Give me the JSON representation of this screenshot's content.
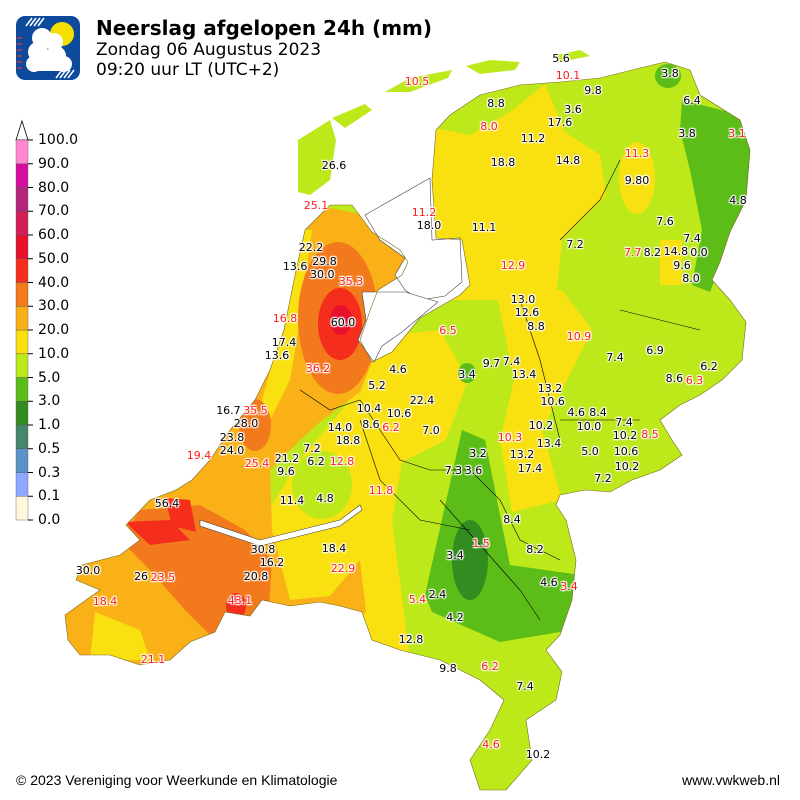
{
  "header": {
    "title": "Neerslag afgelopen 24h (mm)",
    "date": "Zondag 06 Augustus 2023",
    "time": "09:20 uur LT (UTC+2)"
  },
  "logo": {
    "icon": "cloud-sun-rain-logo",
    "background": "#0d4a9b"
  },
  "legend": {
    "unit": "mm",
    "ticks": [
      "100.0",
      "90.0",
      "80.0",
      "70.0",
      "60.0",
      "50.0",
      "40.0",
      "30.0",
      "20.0",
      "10.0",
      "5.0",
      "3.0",
      "1.0",
      "0.5",
      "0.3",
      "0.1",
      "0.0"
    ],
    "colors_bottom_to_top": [
      "#fff8dc",
      "#8ca8ff",
      "#5a92c8",
      "#46866a",
      "#338c20",
      "#5cbc18",
      "#bde81a",
      "#f9e011",
      "#f9b117",
      "#f27a1c",
      "#f52d1d",
      "#e8112d",
      "#d41e58",
      "#b3247a",
      "#d40fa0",
      "#ff88d0"
    ],
    "extend": "max"
  },
  "stations": [
    {
      "v": "10.5",
      "red": true
    },
    {
      "v": "5.6",
      "red": false
    },
    {
      "v": "10.1",
      "red": true
    },
    {
      "v": "9.8",
      "red": false
    },
    {
      "v": "3.8",
      "red": false
    },
    {
      "v": "6.4",
      "red": false
    },
    {
      "v": "8.8",
      "red": false
    },
    {
      "v": "8.0",
      "red": true
    },
    {
      "v": "3.6",
      "red": false
    },
    {
      "v": "17.6",
      "red": false
    },
    {
      "v": "11.2",
      "red": false
    },
    {
      "v": "3.8",
      "red": false
    },
    {
      "v": "3.1",
      "red": true
    },
    {
      "v": "11.3",
      "red": true
    },
    {
      "v": "18.8",
      "red": false
    },
    {
      "v": "14.8",
      "red": false
    },
    {
      "v": "26.6",
      "red": false
    },
    {
      "v": "9.80",
      "red": false
    },
    {
      "v": "4.8",
      "red": false
    },
    {
      "v": "25.1",
      "red": true
    },
    {
      "v": "11.2",
      "red": true
    },
    {
      "v": "18.0",
      "red": false
    },
    {
      "v": "11.1",
      "red": false
    },
    {
      "v": "7.6",
      "red": false
    },
    {
      "v": "7.2",
      "red": false
    },
    {
      "v": "7.7",
      "red": true
    },
    {
      "v": "8.2",
      "red": false
    },
    {
      "v": "14.8",
      "red": false
    },
    {
      "v": "7.4",
      "red": false
    },
    {
      "v": "0.0",
      "red": false
    },
    {
      "v": "9.6",
      "red": false
    },
    {
      "v": "8.0",
      "red": false
    },
    {
      "v": "12.9",
      "red": true
    },
    {
      "v": "22.2",
      "red": false
    },
    {
      "v": "13.6",
      "red": false
    },
    {
      "v": "29.8",
      "red": false
    },
    {
      "v": "30.0",
      "red": false
    },
    {
      "v": "35.3",
      "red": true
    },
    {
      "v": "13.0",
      "red": false
    },
    {
      "v": "12.6",
      "red": false
    },
    {
      "v": "16.8",
      "red": true
    },
    {
      "v": "60.0",
      "red": false
    },
    {
      "v": "6.5",
      "red": true
    },
    {
      "v": "8.8",
      "red": false
    },
    {
      "v": "10.9",
      "red": true
    },
    {
      "v": "17.4",
      "red": false
    },
    {
      "v": "13.6",
      "red": false
    },
    {
      "v": "9.7",
      "red": false
    },
    {
      "v": "7.4",
      "red": false
    },
    {
      "v": "7.4",
      "red": false
    },
    {
      "v": "6.9",
      "red": false
    },
    {
      "v": "36.2",
      "red": true
    },
    {
      "v": "4.6",
      "red": false
    },
    {
      "v": "3.4",
      "red": false
    },
    {
      "v": "13.4",
      "red": false
    },
    {
      "v": "6.2",
      "red": false
    },
    {
      "v": "8.6",
      "red": false
    },
    {
      "v": "6.3",
      "red": true
    },
    {
      "v": "5.2",
      "red": false
    },
    {
      "v": "13.2",
      "red": false
    },
    {
      "v": "10.6",
      "red": false
    },
    {
      "v": "22.4",
      "red": false
    },
    {
      "v": "10.4",
      "red": false
    },
    {
      "v": "10.6",
      "red": false
    },
    {
      "v": "8.6",
      "red": false
    },
    {
      "v": "6.2",
      "red": true
    },
    {
      "v": "4.6",
      "red": false
    },
    {
      "v": "8.4",
      "red": false
    },
    {
      "v": "7.4",
      "red": false
    },
    {
      "v": "10.0",
      "red": false
    },
    {
      "v": "16.7",
      "red": false
    },
    {
      "v": "35.5",
      "red": true
    },
    {
      "v": "23.8",
      "red": false
    },
    {
      "v": "28.0",
      "red": false
    },
    {
      "v": "7.0",
      "red": false
    },
    {
      "v": "14.0",
      "red": false
    },
    {
      "v": "10.2",
      "red": false
    },
    {
      "v": "10.2",
      "red": false
    },
    {
      "v": "8.5",
      "red": true
    },
    {
      "v": "10.3",
      "red": true
    },
    {
      "v": "18.8",
      "red": false
    },
    {
      "v": "13.4",
      "red": false
    },
    {
      "v": "24.0",
      "red": false
    },
    {
      "v": "7.2",
      "red": false
    },
    {
      "v": "21.2",
      "red": false
    },
    {
      "v": "6.2",
      "red": false
    },
    {
      "v": "3.2",
      "red": false
    },
    {
      "v": "13.2",
      "red": false
    },
    {
      "v": "5.0",
      "red": false
    },
    {
      "v": "10.6",
      "red": false
    },
    {
      "v": "19.4",
      "red": true
    },
    {
      "v": "25.4",
      "red": true
    },
    {
      "v": "12.8",
      "red": true
    },
    {
      "v": "9.6",
      "red": false
    },
    {
      "v": "7.3",
      "red": false
    },
    {
      "v": "3.6",
      "red": false
    },
    {
      "v": "17.4",
      "red": false
    },
    {
      "v": "10.2",
      "red": false
    },
    {
      "v": "7.2",
      "red": false
    },
    {
      "v": "11.8",
      "red": true
    },
    {
      "v": "11.4",
      "red": false
    },
    {
      "v": "4.8",
      "red": false
    },
    {
      "v": "56.4",
      "red": false
    },
    {
      "v": "8.4",
      "red": false
    },
    {
      "v": "1.5",
      "red": true
    },
    {
      "v": "30.8",
      "red": false
    },
    {
      "v": "18.4",
      "red": false
    },
    {
      "v": "8.2",
      "red": false
    },
    {
      "v": "3.4",
      "red": false
    },
    {
      "v": "16.2",
      "red": false
    },
    {
      "v": "30.0",
      "red": false
    },
    {
      "v": "26",
      "red": false
    },
    {
      "v": "23.5",
      "red": true
    },
    {
      "v": "20.8",
      "red": false
    },
    {
      "v": "22.9",
      "red": true
    },
    {
      "v": "4.6",
      "red": false
    },
    {
      "v": "3.4",
      "red": true
    },
    {
      "v": "2.4",
      "red": false
    },
    {
      "v": "5.4",
      "red": true
    },
    {
      "v": "18.4",
      "red": true
    },
    {
      "v": "43.1",
      "red": true
    },
    {
      "v": "4.2",
      "red": false
    },
    {
      "v": "12.8",
      "red": false
    },
    {
      "v": "21.1",
      "red": true
    },
    {
      "v": "6.2",
      "red": true
    },
    {
      "v": "9.8",
      "red": false
    },
    {
      "v": "7.4",
      "red": false
    },
    {
      "v": "4.6",
      "red": true
    },
    {
      "v": "10.2",
      "red": false
    }
  ],
  "footer": {
    "copyright": "© 2023 Vereniging voor Weerkunde en Klimatologie",
    "website": "www.vwkweb.nl"
  }
}
